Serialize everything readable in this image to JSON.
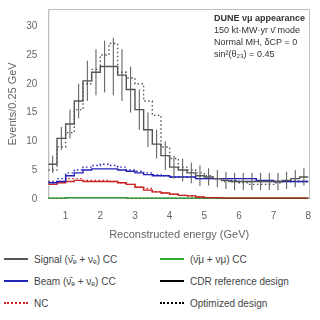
{
  "chart_data": {
    "type": "histogram",
    "xlabel": "Reconstructed energy (GeV)",
    "ylabel": "Events/0.25 GeV",
    "bins": [
      0.5,
      0.75,
      1.0,
      1.25,
      1.5,
      1.75,
      2.0,
      2.25,
      2.5,
      2.75,
      3.0,
      3.25,
      3.5,
      3.75,
      4.0,
      4.25,
      4.5,
      4.75,
      5.0,
      5.25,
      5.5,
      5.75,
      6.0,
      6.25,
      6.5,
      6.75,
      7.0,
      7.25,
      7.5,
      7.75,
      8.0
    ],
    "xlim": [
      0.5,
      8.05
    ],
    "ylim": [
      0,
      33
    ],
    "xticks": [
      1,
      2,
      3,
      4,
      5,
      6,
      7,
      8
    ],
    "yticks": [
      0,
      5,
      10,
      15,
      20,
      25,
      30
    ],
    "grid": false,
    "series": [
      {
        "color": "#555555",
        "line_style": "solid",
        "values": [
          6.0,
          10.5,
          13.0,
          17.0,
          20.5,
          22.0,
          23.0,
          23.0,
          21.5,
          19.0,
          15.5,
          12.0,
          9.5,
          7.5,
          5.5,
          5.0,
          4.5,
          4.0,
          3.8,
          3.5,
          3.2,
          3.0,
          3.0,
          3.0,
          3.0,
          3.0,
          3.0,
          3.2,
          3.5,
          3.8
        ],
        "errors": [
          1.5,
          2.0,
          2.5,
          3.0,
          3.5,
          4.0,
          4.5,
          5.0,
          4.5,
          4.0,
          3.5,
          3.0,
          2.5,
          2.5,
          2.0,
          2.0,
          1.8,
          1.8,
          1.5,
          1.5,
          1.5,
          1.5,
          1.5,
          1.5,
          1.5,
          1.5,
          1.5,
          1.5,
          1.5,
          1.5
        ]
      },
      {
        "color": "#2222bb",
        "line_style": "solid",
        "values": [
          2.8,
          3.0,
          4.0,
          4.5,
          5.0,
          5.2,
          5.2,
          5.2,
          5.0,
          4.8,
          4.5,
          4.2,
          4.0,
          4.0,
          3.8,
          3.8,
          3.8,
          3.5,
          3.5,
          3.5,
          3.5,
          3.5,
          3.5,
          3.5,
          3.2,
          3.2,
          3.0,
          3.0,
          3.0,
          3.0
        ]
      },
      {
        "color": "#cc2222",
        "line_style": "solid",
        "values": [
          2.5,
          2.8,
          3.0,
          3.2,
          3.0,
          3.0,
          3.0,
          3.0,
          2.8,
          2.5,
          2.0,
          1.5,
          1.2,
          1.0,
          0.8,
          0.6,
          0.5,
          0.3,
          0.2,
          0.2,
          0.1,
          0.1,
          0.1,
          0.1,
          0.1,
          0.1,
          0.1,
          0.1,
          0.1,
          0.1
        ]
      },
      {
        "color": "#33aa33",
        "line_style": "solid",
        "values": [
          0.1,
          0.1,
          0.2,
          0.2,
          0.2,
          0.2,
          0.2,
          0.2,
          0.2,
          0.1,
          0.1,
          0.1,
          0.1,
          0.1,
          0.1,
          0.1,
          0.1,
          0.1,
          0.1,
          0.1,
          0.1,
          0.1,
          0.1,
          0.1,
          0.1,
          0.1,
          0.1,
          0.1,
          0.1,
          0.1
        ]
      },
      {
        "color": "#555555",
        "line_style": "dotted",
        "values": [
          5.0,
          9.0,
          11.5,
          15.5,
          20.0,
          22.5,
          25.0,
          27.0,
          22.0,
          21.0,
          20.0,
          17.0,
          14.5,
          9.0,
          7.0,
          5.5,
          5.0,
          4.5,
          4.0,
          3.5,
          3.0,
          3.0,
          2.8,
          2.5,
          2.5,
          2.5,
          2.8,
          3.0,
          3.0,
          3.0
        ]
      },
      {
        "color": "#2222bb",
        "line_style": "dotted",
        "values": [
          3.0,
          3.5,
          4.5,
          5.0,
          5.5,
          5.8,
          6.0,
          5.8,
          5.5,
          5.0,
          4.8,
          4.5,
          4.2,
          4.0,
          3.8,
          3.8,
          3.8,
          3.5,
          3.5,
          3.5,
          3.2,
          3.2,
          3.0,
          3.0,
          3.0,
          3.0,
          3.0,
          3.0,
          3.0,
          3.0
        ]
      },
      {
        "color": "#cc2222",
        "line_style": "dotted",
        "values": [
          2.8,
          3.0,
          3.5,
          3.5,
          3.2,
          3.2,
          3.2,
          3.0,
          2.8,
          2.5,
          2.0,
          1.8,
          1.2,
          1.0,
          0.8,
          0.6,
          0.5,
          0.3,
          0.2,
          0.2,
          0.1,
          0.1,
          0.1,
          0.1,
          0.1,
          0.1,
          0.1,
          0.1,
          0.1,
          0.1
        ]
      },
      {
        "color": "#33aa33",
        "line_style": "dotted",
        "values": [
          0.1,
          0.1,
          0.2,
          0.2,
          0.2,
          0.2,
          0.2,
          0.2,
          0.2,
          0.1,
          0.1,
          0.1,
          0.1,
          0.1,
          0.1,
          0.1,
          0.1,
          0.1,
          0.1,
          0.1,
          0.1,
          0.1,
          0.1,
          0.1,
          0.1,
          0.1,
          0.1,
          0.1,
          0.1,
          0.1
        ]
      }
    ],
    "legend_entries": [
      {
        "name": "Signal (ν̄ₑ + νₑ) CC",
        "color": "#555555",
        "line_style": "solid"
      },
      {
        "name": "(ν̄μ + νμ) CC",
        "color": "#33aa33",
        "line_style": "solid"
      },
      {
        "name": "Beam (ν̄ₑ + νₑ) CC",
        "color": "#2222bb",
        "line_style": "solid"
      },
      {
        "name": "CDR reference design",
        "color": "#000000",
        "line_style": "solid"
      },
      {
        "name": "NC",
        "color": "#cc2222",
        "line_style": "dotted"
      },
      {
        "name": "Optimized design",
        "color": "#000000",
        "line_style": "dotted"
      }
    ],
    "annotations": [
      "DUNE νμ appearance",
      "150 kt·MW·yr ν̄ mode",
      "Normal MH, δCP = 0",
      "sin²(θ₂₃) = 0.45"
    ]
  }
}
